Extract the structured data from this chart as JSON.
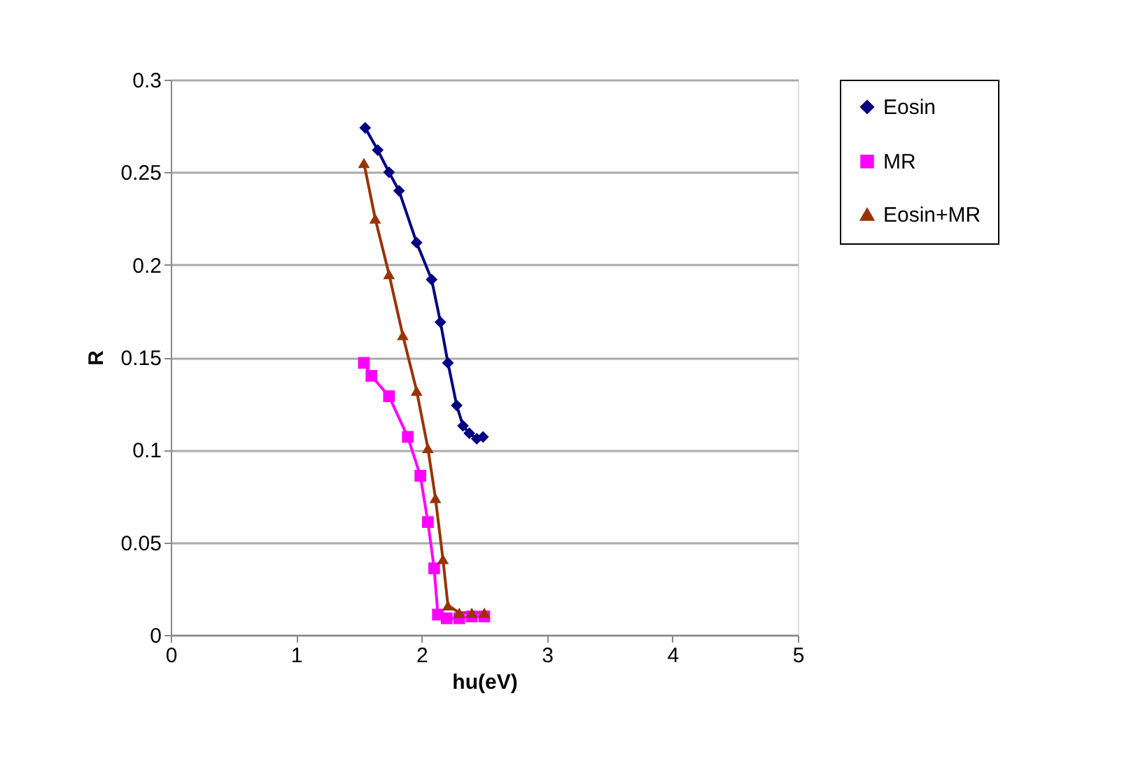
{
  "chart_data": {
    "type": "line",
    "xlabel": "hu(eV)",
    "ylabel": "R",
    "xlim": [
      0,
      5
    ],
    "xticks": [
      0,
      1,
      2,
      3,
      4,
      5
    ],
    "ylim": [
      0,
      0.3
    ],
    "yticks": [
      0,
      0.05,
      0.1,
      0.15,
      0.2,
      0.25,
      0.3
    ],
    "grid": "y",
    "legend": "right",
    "line_style": "solid",
    "series": [
      {
        "name": "Eosin",
        "color": "#000080",
        "marker": "diamond",
        "x": [
          1.55,
          1.65,
          1.74,
          1.82,
          1.96,
          2.08,
          2.15,
          2.21,
          2.28,
          2.33,
          2.38,
          2.44,
          2.49
        ],
        "values": [
          0.274,
          0.262,
          0.25,
          0.24,
          0.212,
          0.192,
          0.169,
          0.147,
          0.124,
          0.113,
          0.109,
          0.106,
          0.107
        ]
      },
      {
        "name": "MR",
        "color": "#ff00ff",
        "marker": "square",
        "x": [
          1.54,
          1.6,
          1.74,
          1.89,
          1.99,
          2.05,
          2.1,
          2.13,
          2.2,
          2.3,
          2.4,
          2.5
        ],
        "values": [
          0.147,
          0.14,
          0.129,
          0.107,
          0.086,
          0.061,
          0.036,
          0.011,
          0.009,
          0.009,
          0.01,
          0.01
        ]
      },
      {
        "name": "Eosin+MR",
        "color": "#993300",
        "marker": "triangle",
        "x": [
          1.54,
          1.63,
          1.74,
          1.85,
          1.96,
          2.05,
          2.11,
          2.17,
          2.21,
          2.3,
          2.4,
          2.5
        ],
        "values": [
          0.255,
          0.225,
          0.195,
          0.162,
          0.132,
          0.101,
          0.074,
          0.041,
          0.016,
          0.012,
          0.012,
          0.012
        ]
      }
    ]
  }
}
